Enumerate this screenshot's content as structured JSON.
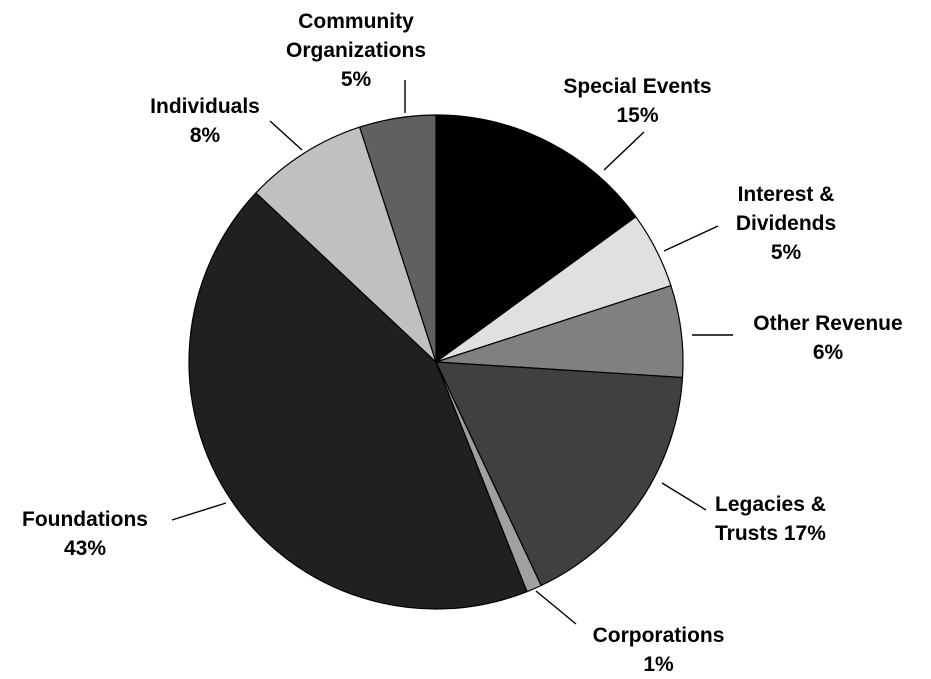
{
  "chart_data": {
    "type": "pie",
    "title": "",
    "slices": [
      {
        "label": "Special Events",
        "value": 15,
        "value_label": "15%",
        "color": "#000000"
      },
      {
        "label": "Interest & Dividends",
        "value": 5,
        "value_label": "5%",
        "color": "#e0e0e0"
      },
      {
        "label": "Other Revenue",
        "value": 6,
        "value_label": "6%",
        "color": "#808080"
      },
      {
        "label": "Legacies & Trusts",
        "value": 17,
        "value_label": "17%",
        "color": "#404040"
      },
      {
        "label": "Corporations",
        "value": 1,
        "value_label": "1%",
        "color": "#a0a0a0"
      },
      {
        "label": "Foundations",
        "value": 43,
        "value_label": "43%",
        "color": "#202020"
      },
      {
        "label": "Individuals",
        "value": 8,
        "value_label": "8%",
        "color": "#c0c0c0"
      },
      {
        "label": "Community Organizations",
        "value": 5,
        "value_label": "5%",
        "color": "#606060"
      }
    ],
    "start_angle": "12 o'clock",
    "direction": "clockwise",
    "legend": "none"
  },
  "labels": {
    "special_events": {
      "line1": "Special Events",
      "line2": "15%"
    },
    "interest_dividends": {
      "line1": "Interest &",
      "line2": "Dividends",
      "line3": "5%"
    },
    "other_revenue": {
      "line1": "Other Revenue",
      "line2": "6%"
    },
    "legacies_trusts": {
      "line1": "Legacies &",
      "line2": "Trusts 17%"
    },
    "corporations": {
      "line1": "Corporations",
      "line2": "1%"
    },
    "foundations": {
      "line1": "Foundations",
      "line2": "43%"
    },
    "individuals": {
      "line1": "Individuals",
      "line2": "8%"
    },
    "community_orgs": {
      "line1": "Community",
      "line2": "Organizations",
      "line3": "5%"
    }
  }
}
